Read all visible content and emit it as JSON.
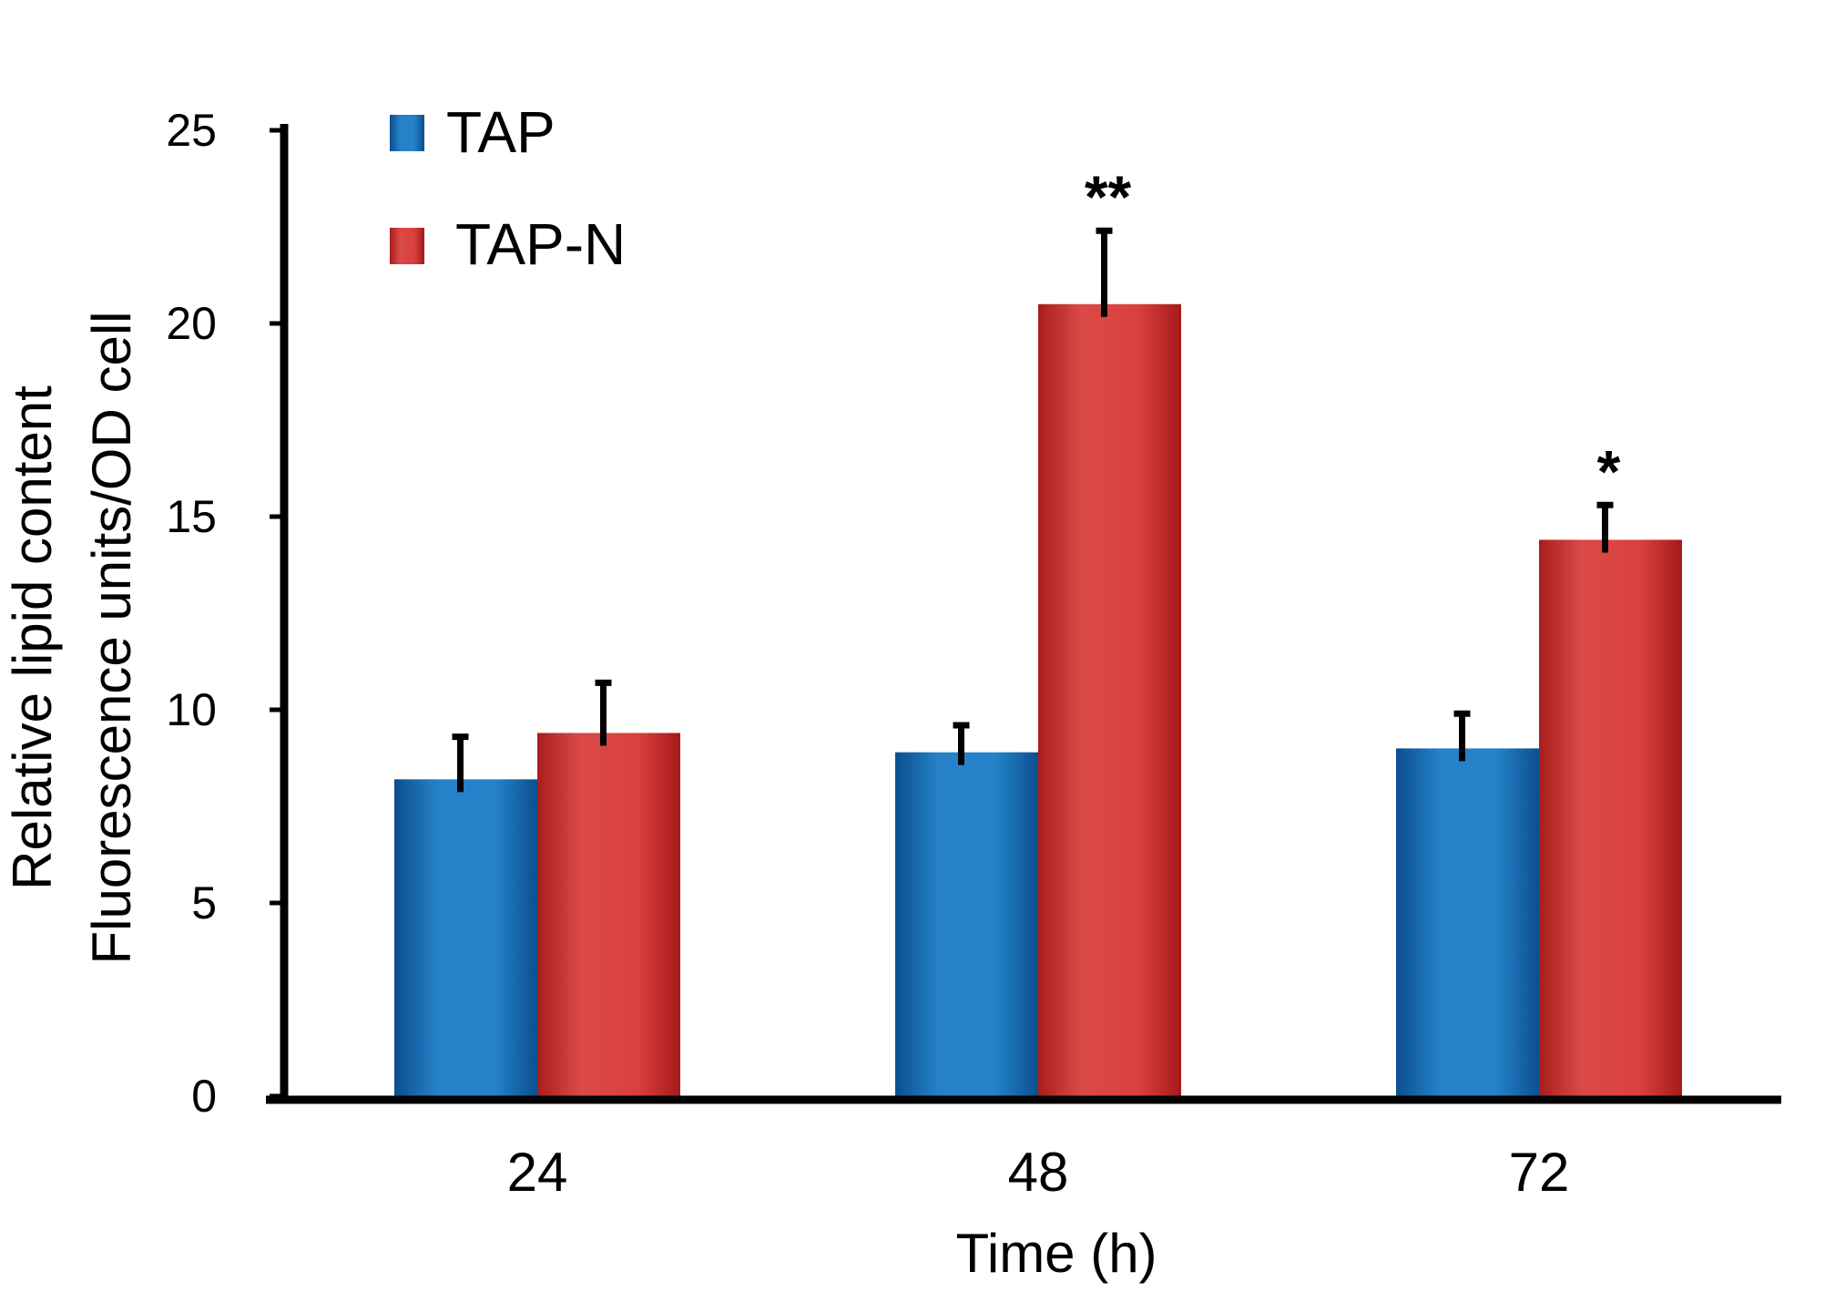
{
  "chart_data": {
    "type": "bar",
    "title": "",
    "categories": [
      "24",
      "48",
      "72"
    ],
    "series": [
      {
        "name": "TAP",
        "color": "#1f78c1",
        "values": [
          8.2,
          8.9,
          9.0
        ],
        "errors": [
          1.1,
          0.7,
          0.9
        ]
      },
      {
        "name": "TAP-N",
        "color": "#d9413e",
        "values": [
          9.4,
          20.5,
          14.4
        ],
        "errors": [
          1.3,
          1.9,
          0.9
        ]
      }
    ],
    "significance": [
      {
        "category": "48",
        "series": "TAP-N",
        "label": "**"
      },
      {
        "category": "72",
        "series": "TAP-N",
        "label": "*"
      }
    ],
    "xlabel": "Time (h)",
    "ylabel_lines": [
      "Relative lipid content",
      "Fluorescence units/OD cell"
    ],
    "ylim": [
      0,
      25
    ],
    "yticks": [
      "0",
      "5",
      "10",
      "15",
      "20",
      "25"
    ],
    "legend_position": "top-left",
    "grid": false
  }
}
